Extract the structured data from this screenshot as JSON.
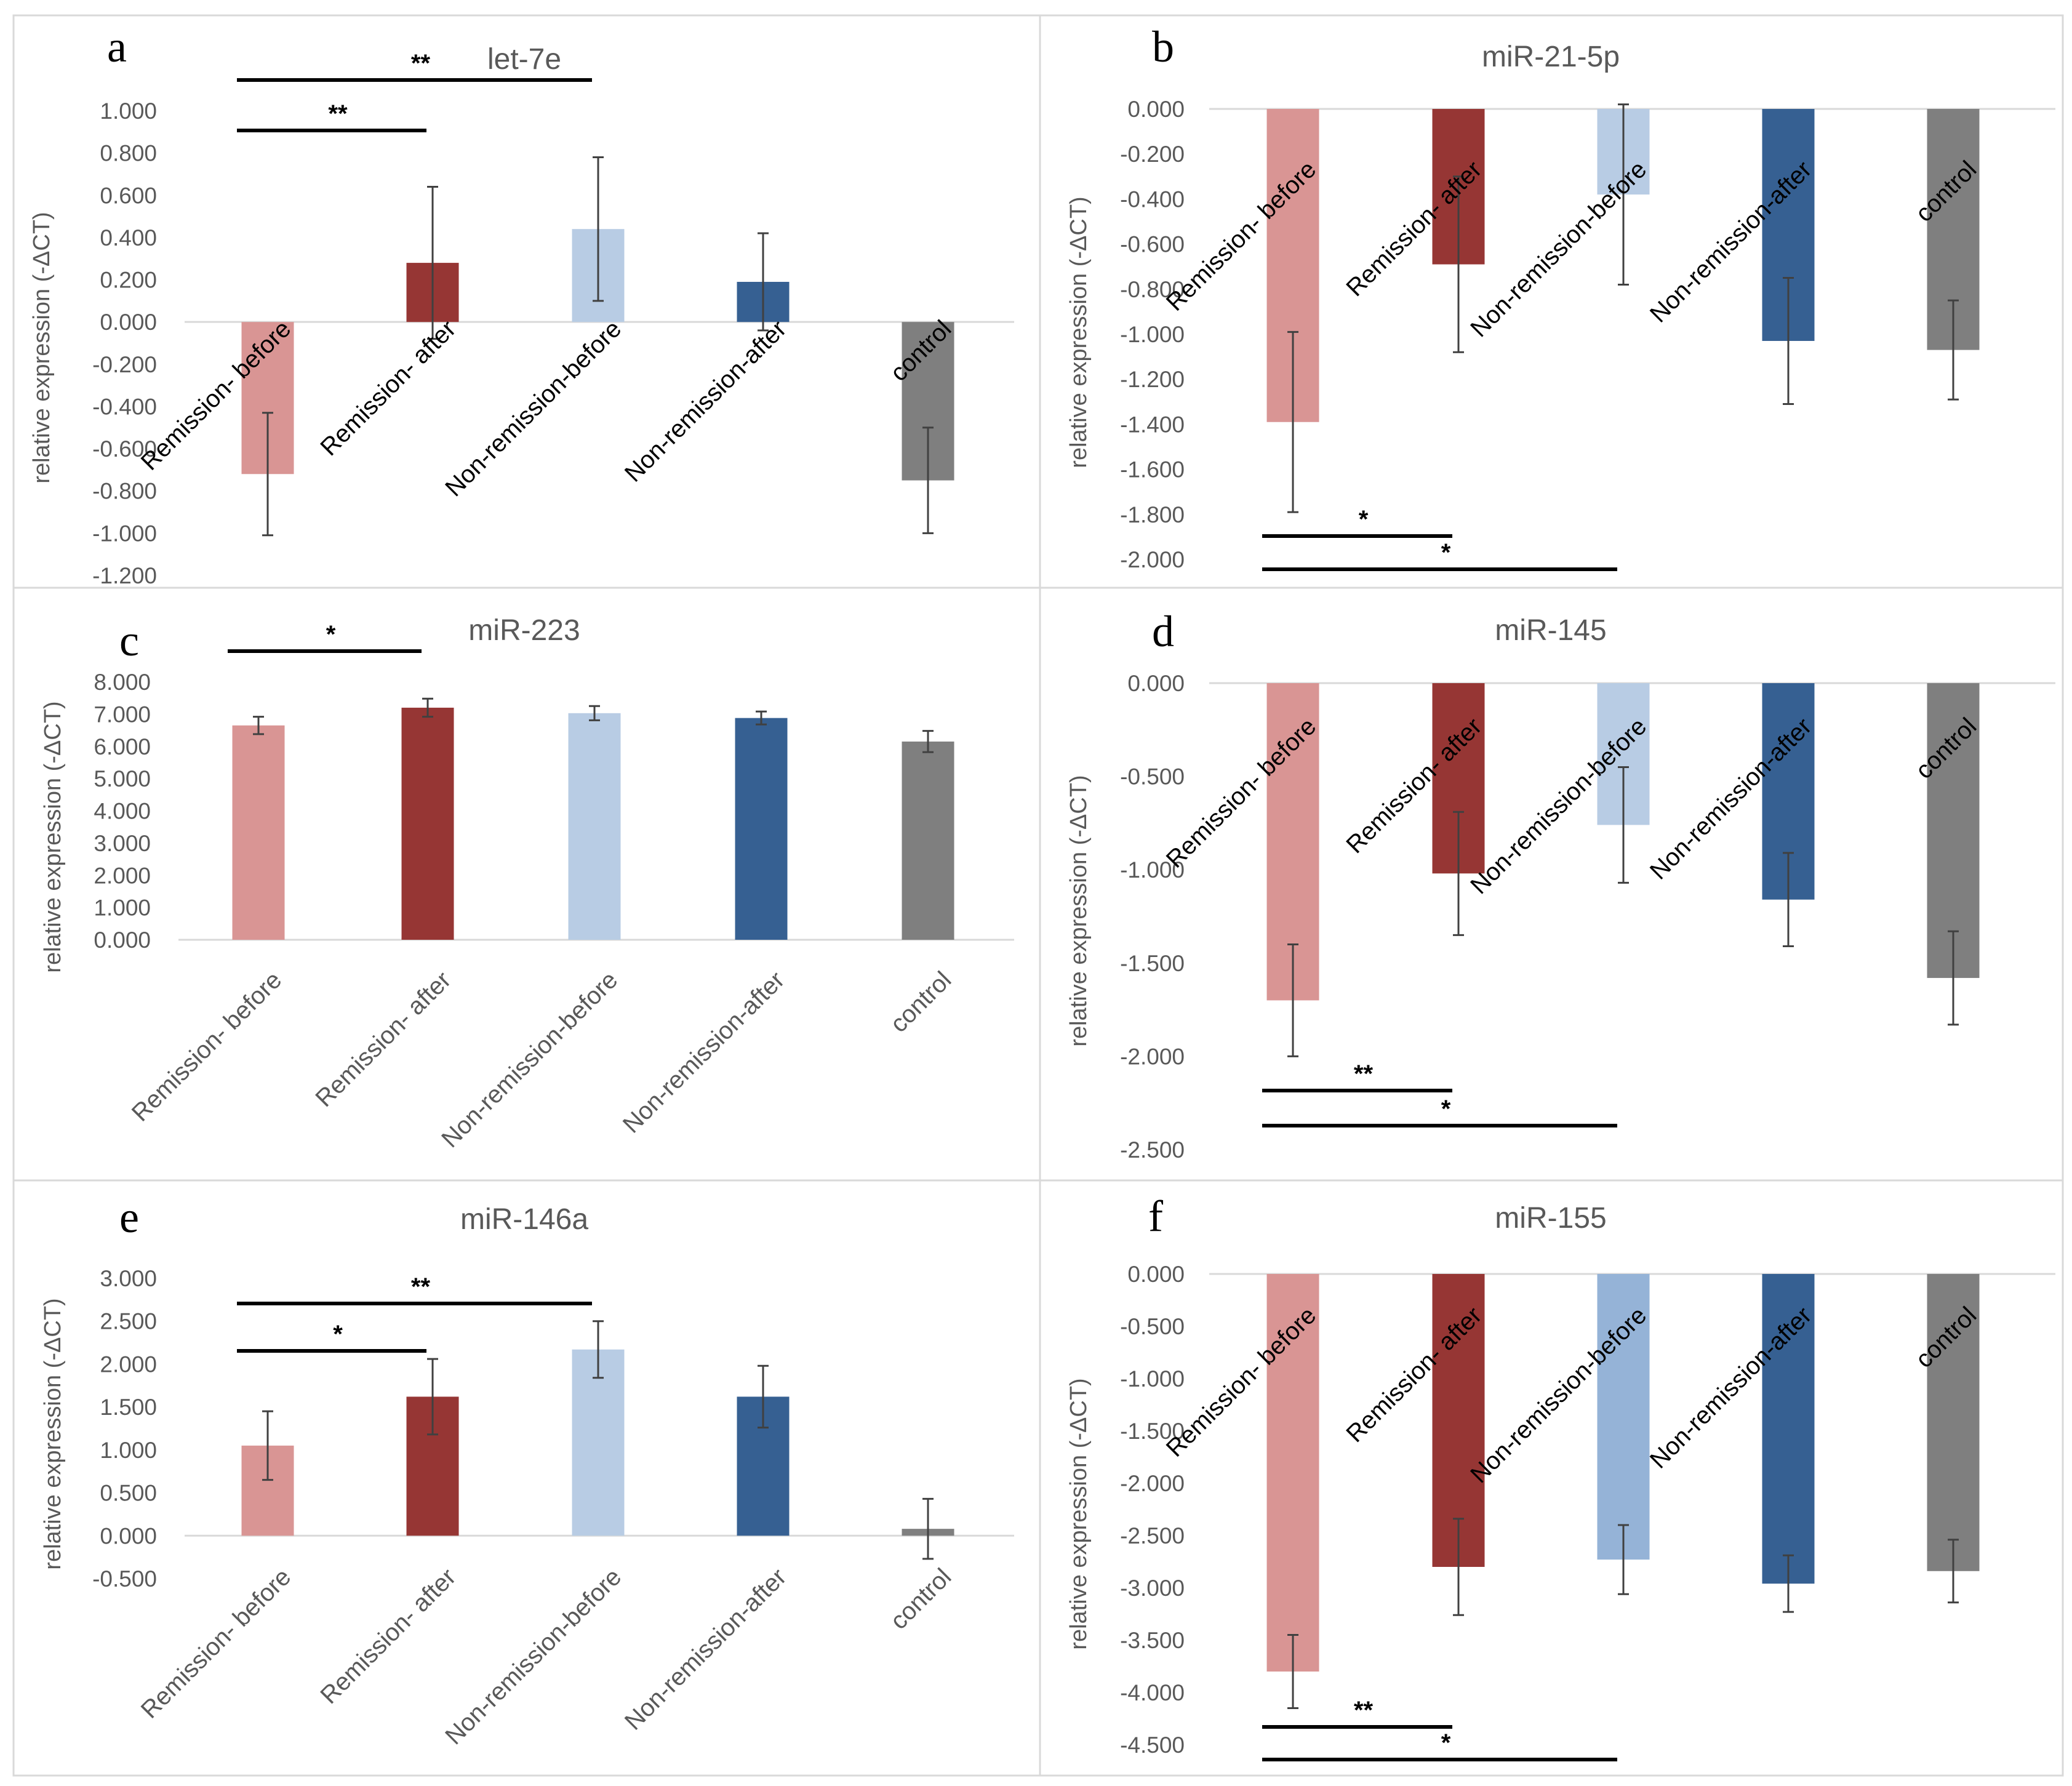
{
  "figure": {
    "background": "#ffffff",
    "border_color": "#d9d9d9"
  },
  "colors": {
    "remission_before": "#d99594",
    "remission_after": "#963634",
    "non_remission_before": "#b8cce4",
    "non_remission_before_f": "#95b3d7",
    "non_remission_after": "#366092",
    "control": "#7f7f7f",
    "error_bar": "#404040",
    "sig_line": "#000000",
    "axis_text": "#595959"
  },
  "chart_data": [
    {
      "panel": "a",
      "type": "bar",
      "title": "let-7e",
      "ylabel": "relative expression (-ΔCT)",
      "categories": [
        "Remission- before",
        "Remission- after",
        "Non-remission-before",
        "Non-remission-after",
        "control"
      ],
      "values": [
        -0.72,
        0.28,
        0.44,
        0.19,
        -0.75
      ],
      "errors": [
        0.29,
        0.36,
        0.34,
        0.23,
        0.25
      ],
      "ylim": [
        -1.2,
        1.0
      ],
      "yticks": [
        "1.000",
        "0.800",
        "0.600",
        "0.400",
        "0.200",
        "0.000",
        "-0.200",
        "-0.400",
        "-0.600",
        "-0.800",
        "-1.000",
        "-1.200"
      ],
      "significance": [
        {
          "from": 0,
          "to": 2,
          "label": "**"
        },
        {
          "from": 0,
          "to": 1,
          "label": "**"
        }
      ]
    },
    {
      "panel": "b",
      "type": "bar",
      "title": "miR-21-5p",
      "ylabel": "relative expression (-ΔCT)",
      "categories": [
        "Remission- before",
        "Remission- after",
        "Non-remission-before",
        "Non-remission-after",
        "control"
      ],
      "values": [
        -1.39,
        -0.69,
        -0.38,
        -1.03,
        -1.07
      ],
      "errors": [
        0.4,
        0.39,
        0.4,
        0.28,
        0.22
      ],
      "ylim": [
        -2.0,
        0.0
      ],
      "yticks": [
        "0.000",
        "-0.200",
        "-0.400",
        "-0.600",
        "-0.800",
        "-1.000",
        "-1.200",
        "-1.400",
        "-1.600",
        "-1.800",
        "-2.000"
      ],
      "significance": [
        {
          "from": 0,
          "to": 1,
          "label": "*"
        },
        {
          "from": 0,
          "to": 2,
          "label": "*"
        }
      ]
    },
    {
      "panel": "c",
      "type": "bar",
      "title": "miR-223",
      "ylabel": "relative expression (-ΔCT)",
      "categories": [
        "Remission- before",
        "Remission- after",
        "Non-remission-before",
        "Non-remission-after",
        "control"
      ],
      "values": [
        6.65,
        7.2,
        7.03,
        6.88,
        6.15
      ],
      "errors": [
        0.27,
        0.28,
        0.22,
        0.2,
        0.33
      ],
      "ylim": [
        0,
        8.0
      ],
      "yticks": [
        "8.000",
        "7.000",
        "6.000",
        "5.000",
        "4.000",
        "3.000",
        "2.000",
        "1.000",
        "0.000"
      ],
      "significance": [
        {
          "from": 0,
          "to": 1,
          "label": "*"
        }
      ]
    },
    {
      "panel": "d",
      "type": "bar",
      "title": "miR-145",
      "ylabel": "relative expression (-ΔCT)",
      "categories": [
        "Remission- before",
        "Remission- after",
        "Non-remission-before",
        "Non-remission-after",
        "control"
      ],
      "values": [
        -1.7,
        -1.02,
        -0.76,
        -1.16,
        -1.58
      ],
      "errors": [
        0.3,
        0.33,
        0.31,
        0.25,
        0.25
      ],
      "ylim": [
        -2.5,
        0.0
      ],
      "yticks": [
        "0.000",
        "-0.500",
        "-1.000",
        "-1.500",
        "-2.000",
        "-2.500"
      ],
      "significance": [
        {
          "from": 0,
          "to": 1,
          "label": "**"
        },
        {
          "from": 0,
          "to": 2,
          "label": "*"
        }
      ]
    },
    {
      "panel": "e",
      "type": "bar",
      "title": "miR-146a",
      "ylabel": "relative expression (-ΔCT)",
      "categories": [
        "Remission- before",
        "Remission- after",
        "Non-remission-before",
        "Non-remission-after",
        "control"
      ],
      "values": [
        1.05,
        1.62,
        2.17,
        1.62,
        0.08
      ],
      "errors": [
        0.4,
        0.44,
        0.33,
        0.36,
        0.35
      ],
      "ylim": [
        -0.5,
        3.0
      ],
      "yticks": [
        "3.000",
        "2.500",
        "2.000",
        "1.500",
        "1.000",
        "0.500",
        "0.000",
        "-0.500"
      ],
      "significance": [
        {
          "from": 0,
          "to": 2,
          "label": "**"
        },
        {
          "from": 0,
          "to": 1,
          "label": "*"
        }
      ]
    },
    {
      "panel": "f",
      "type": "bar",
      "title": "miR-155",
      "ylabel": "relative expression (-ΔCT)",
      "categories": [
        "Remission- before",
        "Remission- after",
        "Non-remission-before",
        "Non-remission-after",
        "control"
      ],
      "values": [
        -3.8,
        -2.8,
        -2.73,
        -2.96,
        -2.84
      ],
      "errors": [
        0.35,
        0.46,
        0.33,
        0.27,
        0.3
      ],
      "ylim": [
        -4.5,
        0.0
      ],
      "yticks": [
        "0.000",
        "-0.500",
        "-1.000",
        "-1.500",
        "-2.000",
        "-2.500",
        "-3.000",
        "-3.500",
        "-4.000",
        "-4.500"
      ],
      "significance": [
        {
          "from": 0,
          "to": 1,
          "label": "**"
        },
        {
          "from": 0,
          "to": 2,
          "label": "*"
        }
      ]
    }
  ]
}
